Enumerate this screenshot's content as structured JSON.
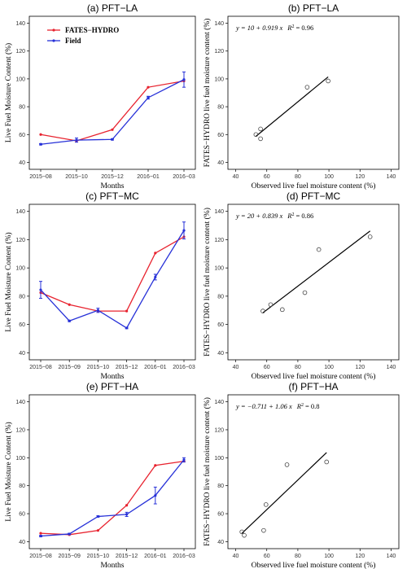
{
  "colors": {
    "model": "#e8232f",
    "field": "#2731d8",
    "fit": "#000000",
    "point": "#444444"
  },
  "legend": {
    "model": "FATES−HYDRO",
    "field": "Field"
  },
  "chart_data": [
    {
      "type": "line",
      "title": "(a) PFT−LA",
      "xlabel": "Months",
      "ylabel": "Live Fuel Moisture Content (%)",
      "ylim": [
        35,
        145
      ],
      "yticks": [
        40,
        60,
        80,
        100,
        120,
        140
      ],
      "categories": [
        "2015−08",
        "2015−10",
        "2015−12",
        "2016−01",
        "2016−03"
      ],
      "series": [
        {
          "name": "FATES−HYDRO",
          "values": [
            60,
            55.5,
            63.5,
            94,
            98.5
          ]
        },
        {
          "name": "Field",
          "values": [
            53,
            56,
            56.5,
            86.5,
            99.5
          ],
          "err": [
            0.5,
            1.5,
            0.5,
            1,
            5.5
          ]
        }
      ]
    },
    {
      "type": "scatter",
      "title": "(b) PFT−LA",
      "xlabel": "Observed live fuel moisture content (%)",
      "ylabel": "FATES−HYDRO live fuel moisture content (%)",
      "xlim": [
        35,
        145
      ],
      "ylim": [
        35,
        145
      ],
      "xticks": [
        40,
        60,
        80,
        100,
        120,
        140
      ],
      "yticks": [
        40,
        60,
        80,
        100,
        120,
        140
      ],
      "points": [
        [
          53,
          60
        ],
        [
          56,
          57
        ],
        [
          56,
          64
        ],
        [
          86,
          94
        ],
        [
          99.5,
          98.5
        ]
      ],
      "fit": {
        "intercept": 10,
        "slope": 0.919,
        "x_range": [
          53,
          99.5
        ]
      },
      "equation_prefix": "y = 10 + 0.919 x",
      "r2_label": "R",
      "r2_value": "= 0.96"
    },
    {
      "type": "line",
      "title": "(c) PFT−MC",
      "xlabel": "Months",
      "ylabel": "Live Fuel Moisture Content (%)",
      "ylim": [
        35,
        145
      ],
      "yticks": [
        40,
        60,
        80,
        100,
        120,
        140
      ],
      "categories": [
        "2015−08",
        "2015−09",
        "2015−10",
        "2015−12",
        "2016−01",
        "2016−03"
      ],
      "series": [
        {
          "name": "FATES−HYDRO",
          "values": [
            82.5,
            74,
            69.5,
            69.5,
            110.5,
            122
          ]
        },
        {
          "name": "Field",
          "values": [
            84.5,
            62.5,
            70,
            57.5,
            93.5,
            126.5
          ],
          "err": [
            6,
            0.5,
            1.5,
            0.5,
            2,
            6
          ]
        }
      ]
    },
    {
      "type": "scatter",
      "title": "(d) PFT−MC",
      "xlabel": "Observed live fuel moisture content (%)",
      "ylabel": "FATES−HYDRO live fuel moisture content (%)",
      "xlim": [
        35,
        145
      ],
      "ylim": [
        35,
        145
      ],
      "xticks": [
        40,
        60,
        80,
        100,
        120,
        140
      ],
      "yticks": [
        40,
        60,
        80,
        100,
        120,
        140
      ],
      "points": [
        [
          57.5,
          69.5
        ],
        [
          62.5,
          74
        ],
        [
          70,
          70.5
        ],
        [
          84.5,
          82.5
        ],
        [
          93.5,
          113
        ],
        [
          126.5,
          122
        ]
      ],
      "fit": {
        "intercept": 20,
        "slope": 0.839,
        "x_range": [
          57.5,
          126.5
        ]
      },
      "equation_prefix": "y = 20 + 0.839 x",
      "r2_label": "R",
      "r2_value": "= 0.86"
    },
    {
      "type": "line",
      "title": "(e) PFT−HA",
      "xlabel": "Months",
      "ylabel": "Live Fuel Moisture Content (%)",
      "ylim": [
        35,
        145
      ],
      "yticks": [
        40,
        60,
        80,
        100,
        120,
        140
      ],
      "categories": [
        "2015−08",
        "2015−09",
        "2015−10",
        "2015−12",
        "2016−01",
        "2016−03"
      ],
      "series": [
        {
          "name": "FATES−HYDRO",
          "values": [
            46,
            45,
            48,
            66,
            94.5,
            97.5
          ]
        },
        {
          "name": "Field",
          "values": [
            44,
            45.5,
            58,
            59.5,
            73,
            98.5
          ],
          "err": [
            0.5,
            0.5,
            0.5,
            1.5,
            6,
            1.5
          ]
        }
      ]
    },
    {
      "type": "scatter",
      "title": "(f) PFT−HA",
      "xlabel": "Observed live fuel moisture content (%)",
      "ylabel": "FATES−HYDRO live fuel moisture content (%)",
      "xlim": [
        35,
        145
      ],
      "ylim": [
        35,
        145
      ],
      "xticks": [
        40,
        60,
        80,
        100,
        120,
        140
      ],
      "yticks": [
        40,
        60,
        80,
        100,
        120,
        140
      ],
      "points": [
        [
          44,
          47
        ],
        [
          45.5,
          44.5
        ],
        [
          58,
          48
        ],
        [
          59.5,
          66.5
        ],
        [
          73,
          95
        ],
        [
          98.5,
          97
        ]
      ],
      "fit": {
        "intercept": -0.711,
        "slope": 1.06,
        "x_range": [
          44,
          98.5
        ]
      },
      "equation_prefix": "y = −0.711 + 1.06 x",
      "r2_label": "R",
      "r2_value": "= 0.8"
    }
  ]
}
